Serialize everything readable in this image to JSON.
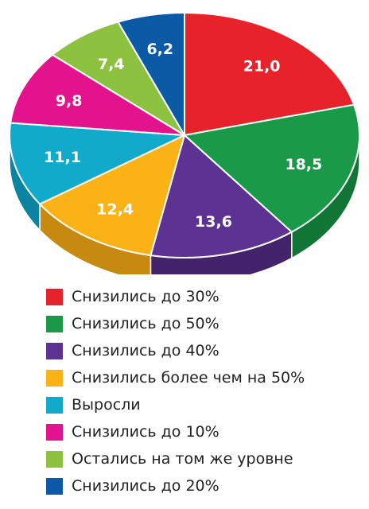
{
  "chart_data": {
    "type": "pie",
    "title": "",
    "style": "3d",
    "legend": "bottom",
    "slices": [
      {
        "label": "Снизились до 30%",
        "value": 21.0,
        "display": "21,0",
        "color": "#e8222b",
        "side": "#b51a20"
      },
      {
        "label": "Снизились до 50%",
        "value": 18.5,
        "display": "18,5",
        "color": "#1a9a48",
        "side": "#117535"
      },
      {
        "label": "Снизились до 40%",
        "value": 13.6,
        "display": "13,6",
        "color": "#5c3292",
        "side": "#44236d"
      },
      {
        "label": "Снизились более чем на 50%",
        "value": 12.4,
        "display": "12,4",
        "color": "#fbb217",
        "side": "#c78a10"
      },
      {
        "label": "Выросли",
        "value": 11.1,
        "display": "11,1",
        "color": "#11aacb",
        "side": "#0c849f"
      },
      {
        "label": "Снизились до 10%",
        "value": 9.8,
        "display": "9,8",
        "color": "#e3128d",
        "side": "#aa0d6a"
      },
      {
        "label": "Остались на том же уровне",
        "value": 7.4,
        "display": "7,4",
        "color": "#8cc23f",
        "side": "#6a962d"
      },
      {
        "label": "Снизились до 20%",
        "value": 6.2,
        "display": "6,2",
        "color": "#0c5aa6",
        "side": "#08437d"
      }
    ]
  }
}
